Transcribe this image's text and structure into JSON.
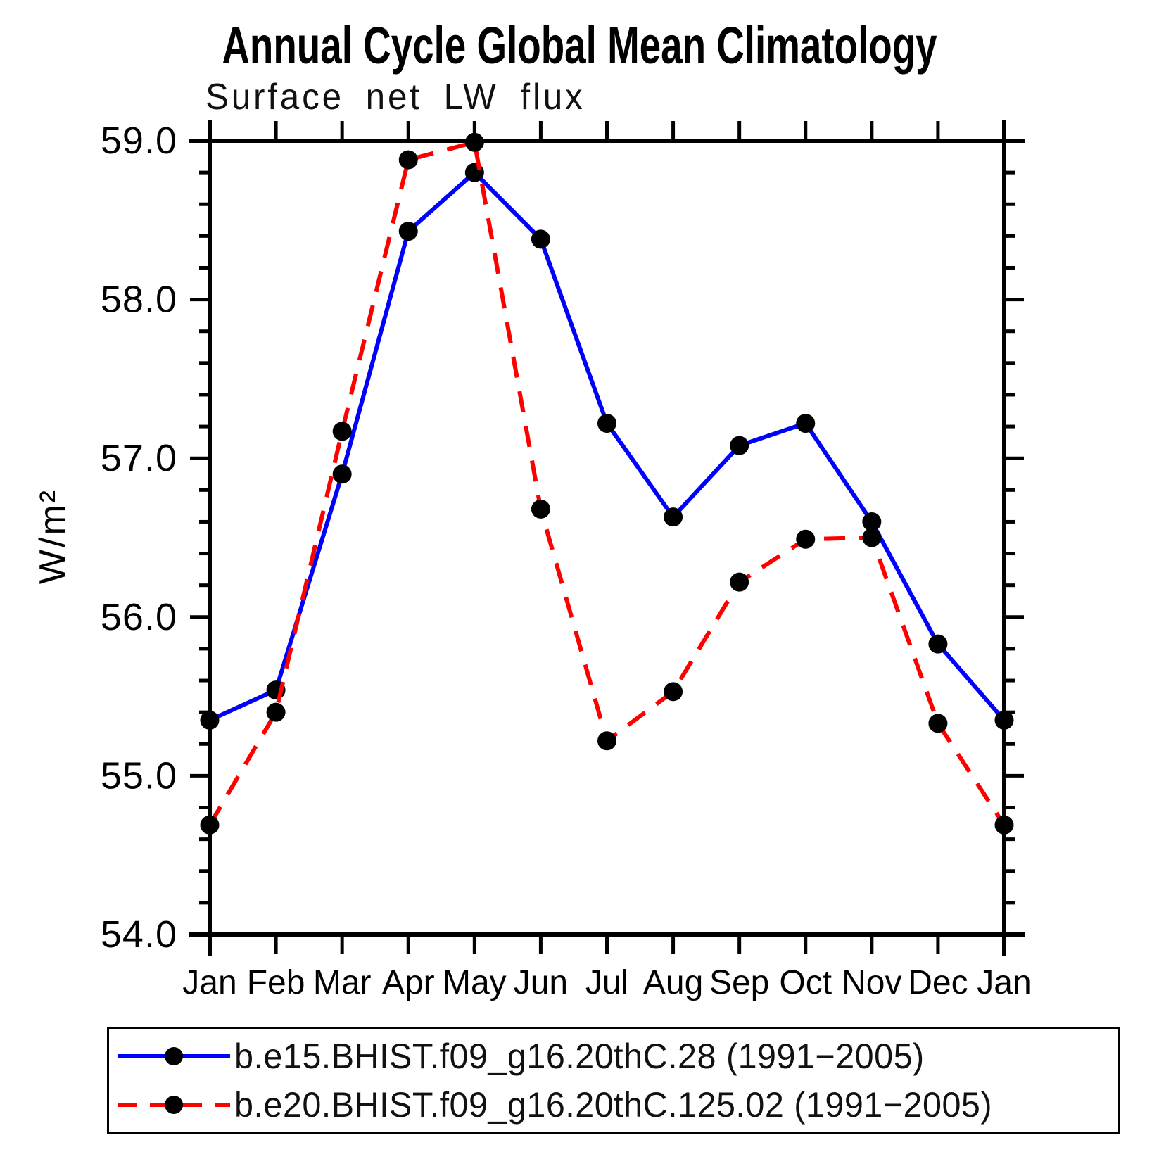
{
  "chart_data": {
    "type": "line",
    "title": "Annual Cycle Global Mean Climatology",
    "subtitle": "Surface net LW flux",
    "ylabel": "W/m²",
    "xlabel": "",
    "categories": [
      "Jan",
      "Feb",
      "Mar",
      "Apr",
      "May",
      "Jun",
      "Jul",
      "Aug",
      "Sep",
      "Oct",
      "Nov",
      "Dec",
      "Jan"
    ],
    "series": [
      {
        "name": "b.e15.BHIST.f09_g16.20thC.28 (1991−2005)",
        "color": "#0000ff",
        "line_style": "solid",
        "marker": "circle",
        "marker_color": "#000000",
        "values": [
          55.35,
          55.54,
          56.9,
          58.43,
          58.8,
          58.38,
          57.22,
          56.63,
          57.08,
          57.22,
          56.6,
          55.83,
          55.35
        ]
      },
      {
        "name": "b.e20.BHIST.f09_g16.20thC.125.02 (1991−2005)",
        "color": "#ff0000",
        "line_style": "dashed",
        "marker": "circle",
        "marker_color": "#000000",
        "values": [
          54.69,
          55.4,
          57.17,
          58.88,
          58.99,
          56.68,
          55.22,
          55.53,
          56.22,
          56.49,
          56.5,
          55.33,
          54.69
        ]
      }
    ],
    "ylim": [
      54.0,
      59.0
    ],
    "y_major_step": 1.0,
    "y_minor_step": 0.2,
    "y_tick_labels": [
      "54.0",
      "55.0",
      "56.0",
      "57.0",
      "58.0",
      "59.0"
    ],
    "grid": false,
    "legend_position": "bottom-left-box",
    "axis_color": "#000000",
    "background_color": "#ffffff"
  }
}
